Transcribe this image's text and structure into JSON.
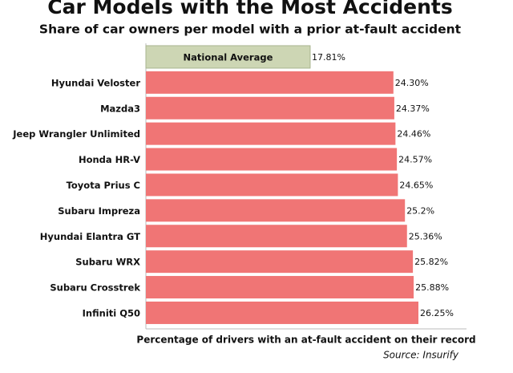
{
  "chart_data": {
    "type": "bar",
    "orientation": "horizontal",
    "title": "Car Models with the Most Accidents",
    "subtitle": "Share of car owners per model with a prior at-fault accident",
    "categories": [
      "National Average",
      "Hyundai Veloster",
      "Mazda3",
      "Jeep Wrangler Unlimited",
      "Honda HR-V",
      "Toyota Prius C",
      "Subaru Impreza",
      "Hyundai Elantra GT",
      "Subaru WRX",
      "Subaru Crosstrek",
      "Infiniti Q50"
    ],
    "values": [
      17.81,
      24.3,
      24.37,
      24.46,
      24.57,
      24.65,
      25.2,
      25.36,
      25.82,
      25.88,
      26.25
    ],
    "value_labels": [
      "17.81%",
      "24.30%",
      "24.37%",
      "24.46%",
      "24.57%",
      "24.65%",
      "25.2%",
      "25.36%",
      "25.82%",
      "25.88%",
      "26.25%"
    ],
    "colors": [
      "#cdd6b4",
      "#f07575",
      "#f07575",
      "#f07575",
      "#f07575",
      "#f07575",
      "#f07575",
      "#f07575",
      "#f07575",
      "#f07575",
      "#f07575"
    ],
    "xlim": [
      5,
      30
    ],
    "x_label": "Percentage of drivers with an at-fault accident on their record",
    "source": "Source: Insurify"
  }
}
